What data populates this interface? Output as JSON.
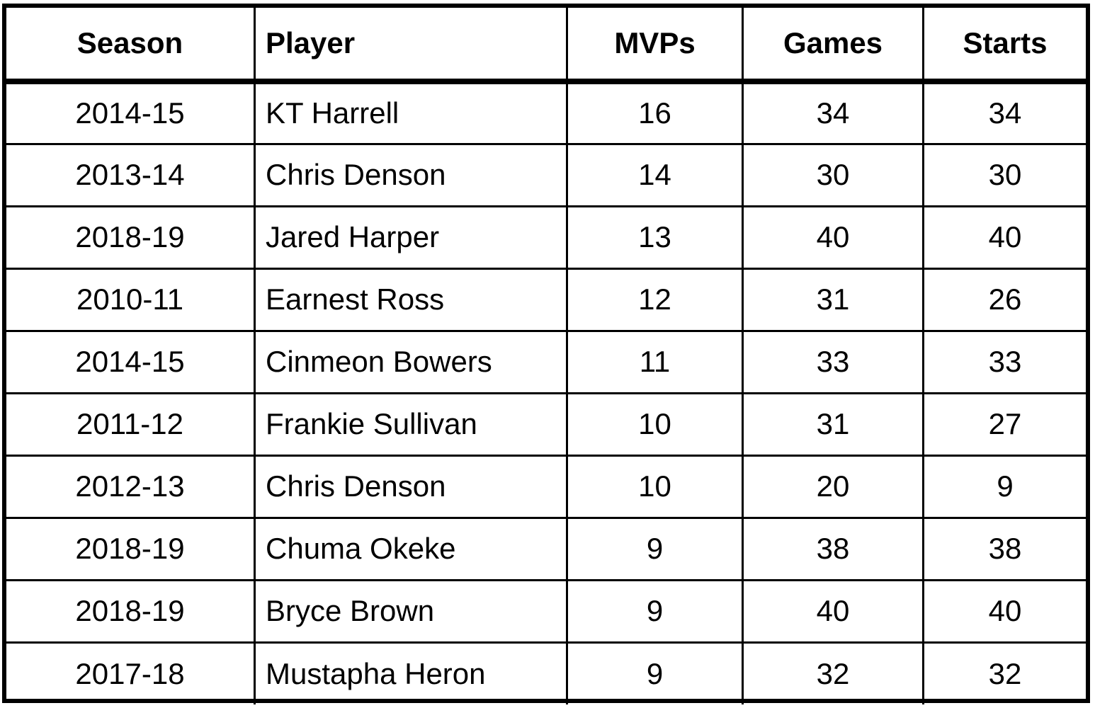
{
  "table": {
    "columns": [
      "Season",
      "Player",
      "MVPs",
      "Games",
      "Starts"
    ],
    "rows": [
      [
        "2014-15",
        "KT Harrell",
        "16",
        "34",
        "34"
      ],
      [
        "2013-14",
        "Chris Denson",
        "14",
        "30",
        "30"
      ],
      [
        "2018-19",
        "Jared Harper",
        "13",
        "40",
        "40"
      ],
      [
        "2010-11",
        "Earnest Ross",
        "12",
        "31",
        "26"
      ],
      [
        "2014-15",
        "Cinmeon Bowers",
        "11",
        "33",
        "33"
      ],
      [
        "2011-12",
        "Frankie Sullivan",
        "10",
        "31",
        "27"
      ],
      [
        "2012-13",
        "Chris Denson",
        "10",
        "20",
        "9"
      ],
      [
        "2018-19",
        "Chuma Okeke",
        "9",
        "38",
        "38"
      ],
      [
        "2018-19",
        "Bryce Brown",
        "9",
        "40",
        "40"
      ],
      [
        "2017-18",
        "Mustapha Heron",
        "9",
        "32",
        "32"
      ]
    ]
  }
}
